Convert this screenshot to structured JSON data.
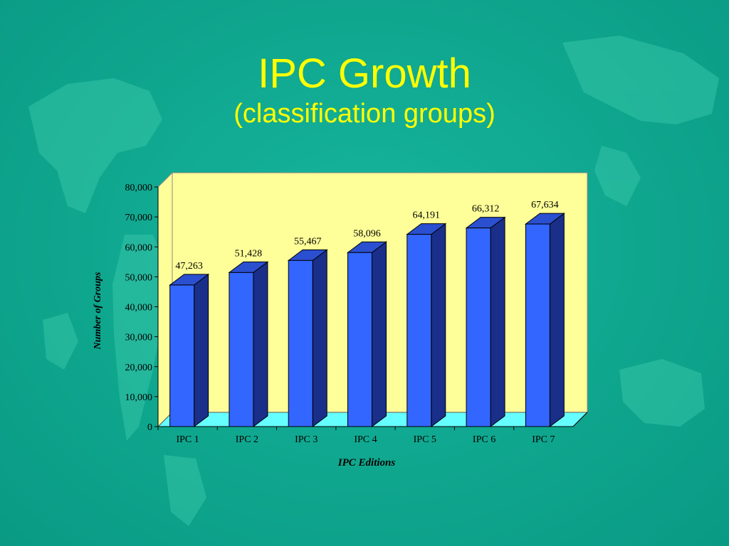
{
  "slide": {
    "title": "IPC Growth",
    "subtitle": "(classification groups)"
  },
  "colors": {
    "background": "#10a890",
    "title": "#ffff00",
    "plot_back_wall": "#ffff99",
    "plot_floor": "#66ffff",
    "bar_front": "#3366ff",
    "bar_side": "#1a2f8a",
    "bar_top": "#2a4fd0"
  },
  "chart_data": {
    "type": "bar",
    "categories": [
      "IPC 1",
      "IPC 2",
      "IPC 3",
      "IPC 4",
      "IPC 5",
      "IPC 6",
      "IPC 7"
    ],
    "values": [
      47263,
      51428,
      55467,
      58096,
      64191,
      66312,
      67634
    ],
    "value_labels": [
      "47,263",
      "51,428",
      "55,467",
      "58,096",
      "64,191",
      "66,312",
      "67,634"
    ],
    "xlabel": "IPC Editions",
    "ylabel": "Number of  Groups",
    "ylim": [
      0,
      80000
    ],
    "yticks": [
      0,
      10000,
      20000,
      30000,
      40000,
      50000,
      60000,
      70000,
      80000
    ],
    "ytick_labels": [
      "0",
      "10,000",
      "20,000",
      "30,000",
      "40,000",
      "50,000",
      "60,000",
      "70,000",
      "80,000"
    ],
    "style": "3d-column",
    "grid": false,
    "legend": false
  }
}
